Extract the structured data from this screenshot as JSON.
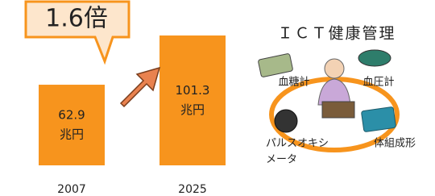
{
  "chart_data": {
    "type": "bar",
    "annotation": "1.6倍",
    "unit": "兆円",
    "categories": [
      "2007",
      "2025"
    ],
    "values": [
      62.9,
      101.3
    ],
    "color": "#f7941d"
  },
  "illustration": {
    "title": "ＩＣＴ健康管理",
    "labels": [
      "血糖計",
      "血圧計",
      "体組成形"
    ],
    "pulse_oximeter": [
      "パルスオキシ",
      "メータ"
    ]
  }
}
